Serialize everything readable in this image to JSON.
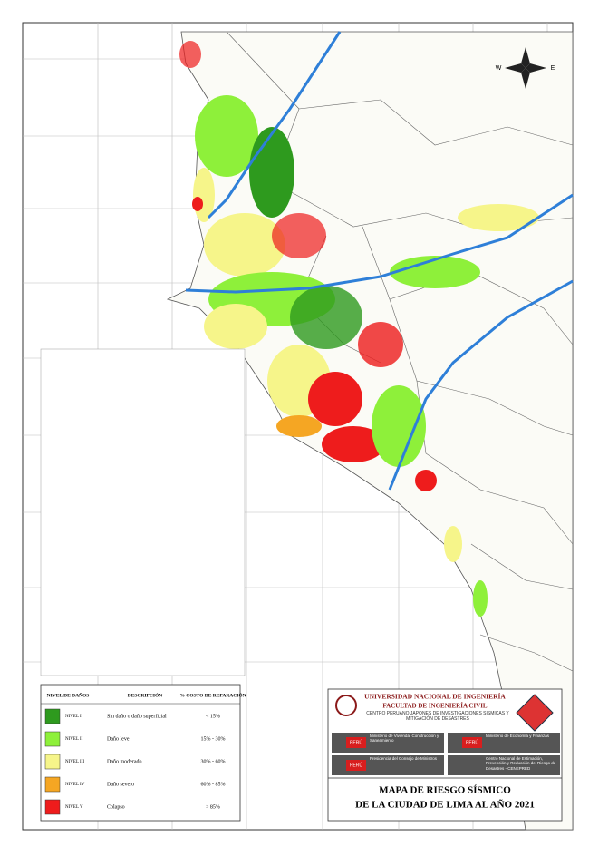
{
  "compass": {
    "west": "W",
    "east": "E"
  },
  "legend": {
    "headers": [
      "NIVEL DE DAÑOS",
      "DESCRIPCIÓN",
      "% COSTO DE REPARACIÓN"
    ],
    "rows": [
      {
        "level": "NIVEL I",
        "description": "Sin daño o daño superficial",
        "cost": "< 15%",
        "color": "#2e9a1e"
      },
      {
        "level": "NIVEL II",
        "description": "Daño leve",
        "cost": "15% - 30%",
        "color": "#8ef03a"
      },
      {
        "level": "NIVEL III",
        "description": "Daño moderado",
        "cost": "30% - 60%",
        "color": "#f6f58a"
      },
      {
        "level": "NIVEL IV",
        "description": "Daño severo",
        "cost": "60% - 85%",
        "color": "#f5a623"
      },
      {
        "level": "NIVEL V",
        "description": "Colapso",
        "cost": "> 85%",
        "color": "#ee1c1c"
      }
    ]
  },
  "institution": {
    "name": "UNIVERSIDAD NACIONAL DE INGENIERÍA",
    "faculty": "FACULTAD DE INGENIERÍA CIVIL",
    "center": "CENTRO PERUANO JAPONÉS DE INVESTIGACIONES SÍSMICAS Y MITIGACIÓN DE DESASTRES"
  },
  "partners": [
    {
      "badge": "PERÚ",
      "name": "Ministerio de Vivienda, Construcción y Saneamiento"
    },
    {
      "badge": "PERÚ",
      "name": "Ministerio de Economía y Finanzas"
    },
    {
      "badge": "PERÚ",
      "name": "Presidencia del Consejo de Ministros"
    },
    {
      "badge": "",
      "name": "Centro Nacional de Estimación, Prevención y Reducción del Riesgo de Desastres - CENEPRED"
    }
  ],
  "title": {
    "line1": "MAPA DE RIESGO SÍSMICO",
    "line2": "DE LA CIUDAD DE LIMA AL AÑO 2021"
  }
}
